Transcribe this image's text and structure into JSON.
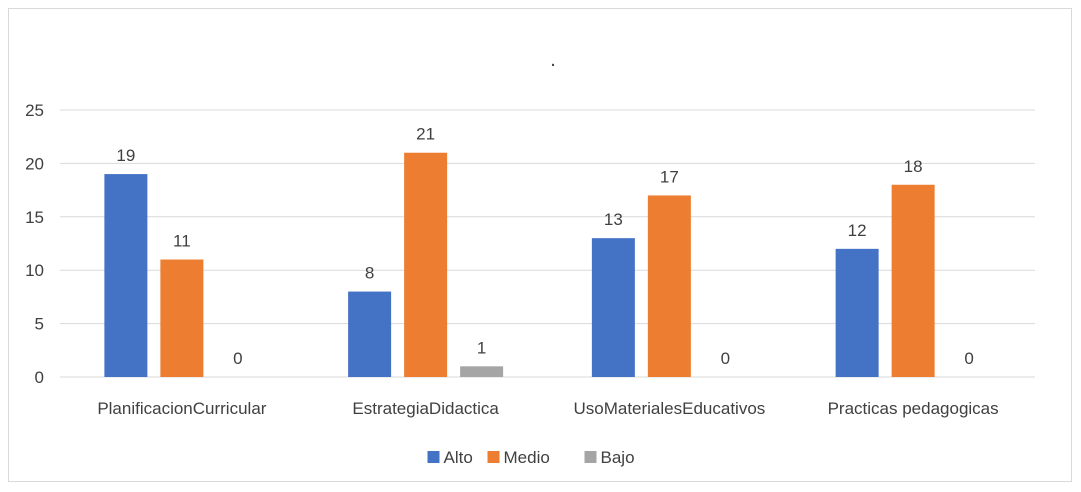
{
  "chart_data": {
    "type": "bar",
    "title": ".",
    "categories": [
      "PlanificacionCurricular",
      "EstrategiaDidactica",
      "UsoMaterialesEducativos",
      "Practicas pedagogicas"
    ],
    "series": [
      {
        "name": "Alto",
        "values": [
          19,
          8,
          13,
          12
        ],
        "color": "#4472c4"
      },
      {
        "name": "Medio",
        "values": [
          11,
          21,
          17,
          18
        ],
        "color": "#ed7d31"
      },
      {
        "name": "Bajo",
        "values": [
          0,
          1,
          0,
          0
        ],
        "color": "#a5a5a5"
      }
    ],
    "ylim": [
      0,
      25
    ],
    "yticks": [
      0,
      5,
      10,
      15,
      20,
      25
    ],
    "grid": true,
    "legend": "bottom",
    "data_labels": true
  }
}
